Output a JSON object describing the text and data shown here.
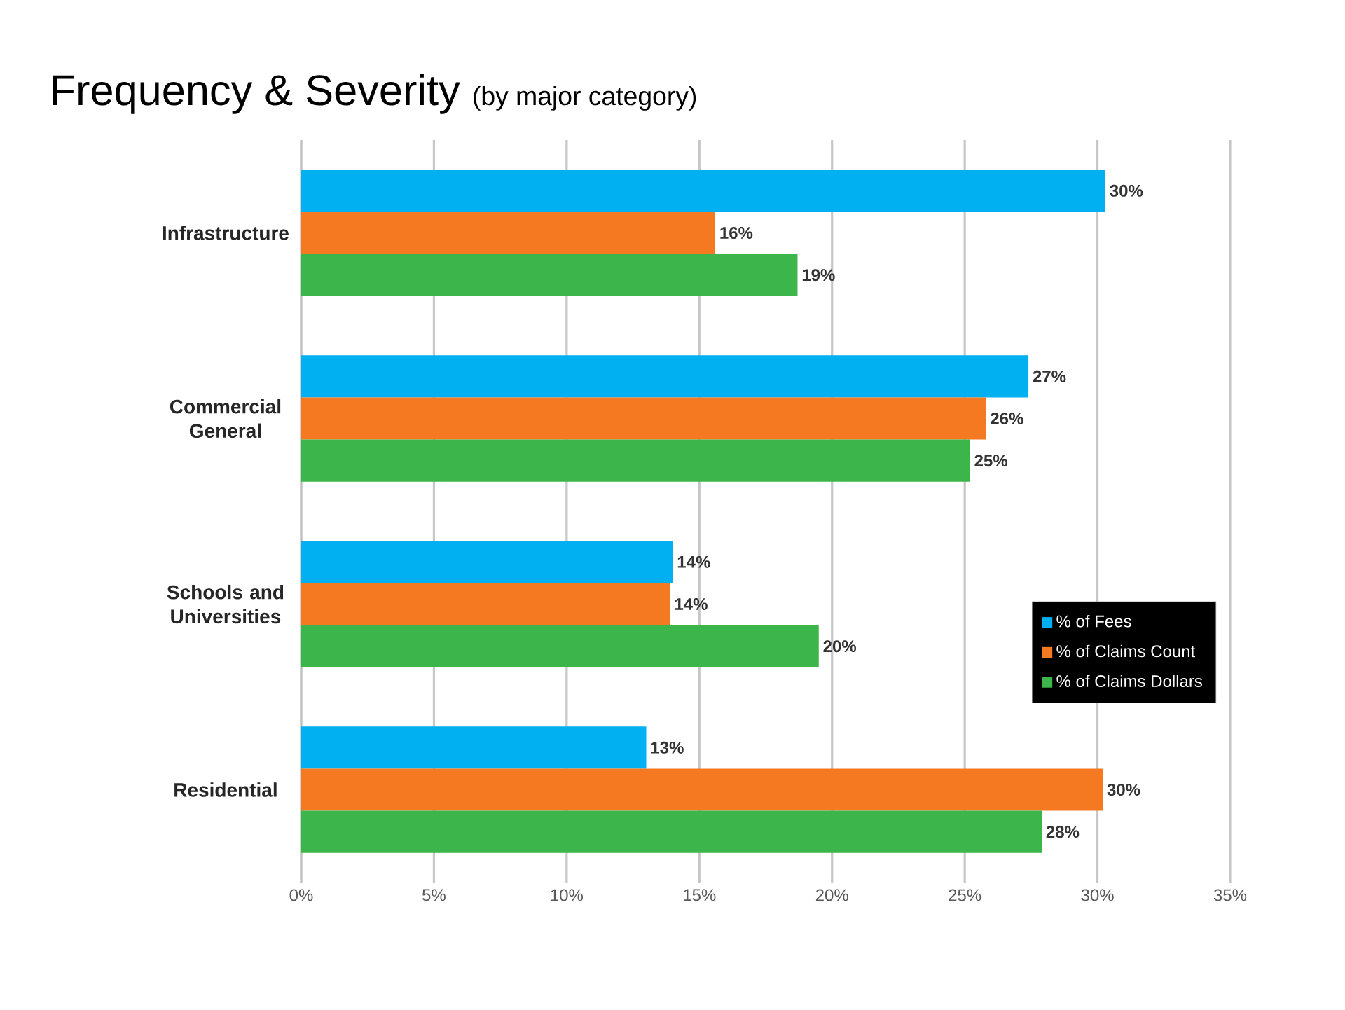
{
  "chart_data": {
    "type": "bar",
    "orientation": "horizontal",
    "title": "Frequency & Severity",
    "subtitle": "(by major category)",
    "categories": [
      "Infrastructure",
      "Commercial General",
      "Schools and Universities",
      "Residential"
    ],
    "series": [
      {
        "name": "% of Fees",
        "color": "#00b0f0",
        "values": [
          30.3,
          27.4,
          14.0,
          13.0
        ],
        "value_labels": [
          "30%",
          "27%",
          "14%",
          "13%"
        ]
      },
      {
        "name": "% of Claims Count",
        "color": "#f47920",
        "values": [
          15.6,
          25.8,
          13.9,
          30.2
        ],
        "value_labels": [
          "16%",
          "26%",
          "14%",
          "30%"
        ]
      },
      {
        "name": "% of Claims Dollars",
        "color": "#3cb54a",
        "values": [
          18.7,
          25.2,
          19.5,
          27.9
        ],
        "value_labels": [
          "19%",
          "25%",
          "20%",
          "28%"
        ]
      }
    ],
    "xlim": [
      0,
      35
    ],
    "xticks": [
      {
        "value": 0,
        "label": "0%"
      },
      {
        "value": 5,
        "label": "5%"
      },
      {
        "value": 10,
        "label": "10%"
      },
      {
        "value": 15,
        "label": "15%"
      },
      {
        "value": 20,
        "label": "20%"
      },
      {
        "value": 25,
        "label": "25%"
      },
      {
        "value": 30,
        "label": "30%"
      },
      {
        "value": 35,
        "label": "35%"
      }
    ],
    "grid": "x",
    "legend": "right"
  }
}
